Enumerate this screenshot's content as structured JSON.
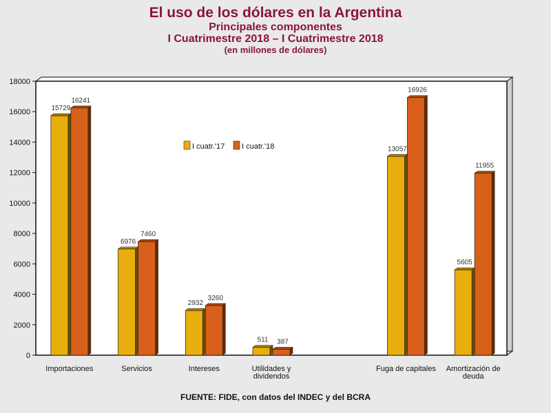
{
  "title": "El uso de los dólares en la Argentina",
  "subtitle": "Principales componentes",
  "period": "I Cuatrimestre 2018 – I Cuatrimestre 2018",
  "unit_note": "(en millones de dólares)",
  "source": "FUENTE: FIDE, con datos del INDEC y del BCRA",
  "colors": {
    "s1": "#e8ae0d",
    "s2": "#d9601b",
    "frame": "#111111"
  },
  "chart_data": {
    "type": "bar",
    "categories": [
      [
        "Importaciones"
      ],
      [
        "Servicios"
      ],
      [
        "Intereses"
      ],
      [
        "Utilidades y",
        "dividendos"
      ],
      [],
      [
        "Fuga de capitales"
      ],
      [
        "Amortización de",
        "deuda"
      ]
    ],
    "series": [
      {
        "name": "I cuatr.'17",
        "values": [
          15729,
          6976,
          2932,
          511,
          null,
          13057,
          5605
        ]
      },
      {
        "name": "I cuatr.'18",
        "values": [
          16241,
          7460,
          3260,
          387,
          null,
          16926,
          11955
        ]
      }
    ],
    "ylim": [
      0,
      18000
    ],
    "yticks": [
      0,
      2000,
      4000,
      6000,
      8000,
      10000,
      12000,
      14000,
      16000,
      18000
    ],
    "grid": false,
    "legend_position": "top-center"
  }
}
